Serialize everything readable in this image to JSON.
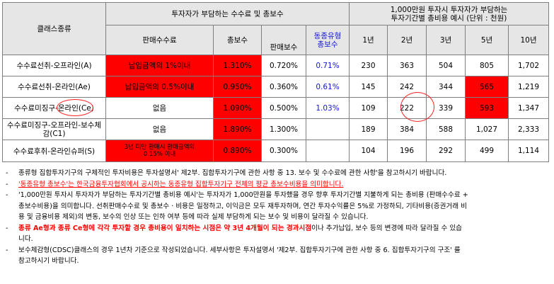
{
  "header": {
    "class_type": "클래스종류",
    "fee_group": "투자자가 부담하는 수수료 및 총보수",
    "cost_group_line1": "1,000만원 투자시 투자자가 부담하는",
    "cost_group_line2": "투자기간별 총비용 예시 (단위 : 천원)",
    "sales_fee": "판매수수료",
    "total_fee": "총보수",
    "peer_line1": "동종유형",
    "peer_line2": "총보수",
    "sales_fee2": "판매보수",
    "years": [
      "1년",
      "2년",
      "3년",
      "5년",
      "10년"
    ]
  },
  "rows": [
    {
      "name": "수수료선취-오프라인(A)",
      "sales_fee": "납입금액의 1%이내",
      "total_fee": "1.310%",
      "sales_fee2": "0.720%",
      "peer": "0.71%",
      "costs": [
        "230",
        "363",
        "504",
        "805",
        "1,702"
      ]
    },
    {
      "name": "수수료선취-온라인(Ae)",
      "sales_fee": "납입금액의 0.5%이내",
      "total_fee": "0.950%",
      "sales_fee2": "0.360%",
      "peer": "0.61%",
      "costs": [
        "145",
        "242",
        "344",
        "565",
        "1,219"
      ]
    },
    {
      "name": "수수료미징구-온라인(Ce)",
      "sales_fee": "없음",
      "total_fee": "1.090%",
      "sales_fee2": "0.500%",
      "peer": "1.03%",
      "costs": [
        "109",
        "222",
        "339",
        "593",
        "1,347"
      ]
    },
    {
      "name": "수수료미징구-오프라인-보수체감(C1)",
      "sales_fee": "없음",
      "total_fee": "1.890%",
      "sales_fee2": "1.300%",
      "peer": "",
      "costs": [
        "189",
        "384",
        "588",
        "1,027",
        "2,333"
      ]
    },
    {
      "name": "수수료후취-온라인슈퍼(S)",
      "sales_fee_line1": "3년 미만 환매시 환매금액의",
      "sales_fee_line2": "0.15% 이내",
      "total_fee": "0.890%",
      "sales_fee2": "0.300%",
      "peer": "",
      "costs": [
        "104",
        "196",
        "292",
        "499",
        "1,114"
      ]
    }
  ],
  "notes": {
    "n1": "종류형 집합투자기구의 구체적인 투자비용은 투자설명서' 제2부. 집합투자기구에 관한 사항 중 13. 보수 및 수수료에 관한 사항'을 참고하시기 바랍니다.",
    "n2": "'동종유형 총보수'는 한국금융투자협회에서 공시하는 동종유형 집합투자기구 전체의 평균 총보수비용을 의미합니다.",
    "n3_line1": "'1,000만원 투자시 투자자가 부담하는 투자기간별 총비용 예시'는 투자자가 1,000만원을 투자했을 경우 향후 투자기간별 지불하게 되는 총비용 (판매수수료 +",
    "n3_line2": "총보수비용)을 의미합니다. 선취판매수수료 및 총보수 · 비용은 일정하고, 이익금은 모두 재투자하며, 연간 투자수익률은 5%로 가정하되, 기타비용(증권거래 비",
    "n3_line3": "용 및 금융비용 제외)의 변동, 보수의 인상 또는 인하 여부 등에 따라 실제 부담하게 되는 보수 및 비용이 달라질 수 있습니다.",
    "n4_bold": "종류 Ae형과 종류 Ce형에 각각 투자할 경우 총비용이 일치하는 시점은 약 3년 4개월이 되는 경과시점",
    "n4_rest": "이나 추가납입, 보수 등의 변경에 따라 달라질 수 있습",
    "n4_line2": "니다.",
    "n5_line1": "보수체감형(CDSC)클래스의 경우 1년차 기준으로 작성되었습니다. 세부사항은 투자설명서 '제2부. 집합투자기구에 관한 사항 중 6. 집합투자기구의 구조' 를",
    "n5_line2": "참고하시기 바랍니다.",
    "dash": "-"
  },
  "colors": {
    "highlight": "#ff0000",
    "header_bg": "#e6e6e6",
    "peer_text": "#1515d8",
    "border": "#7f7f7f"
  }
}
